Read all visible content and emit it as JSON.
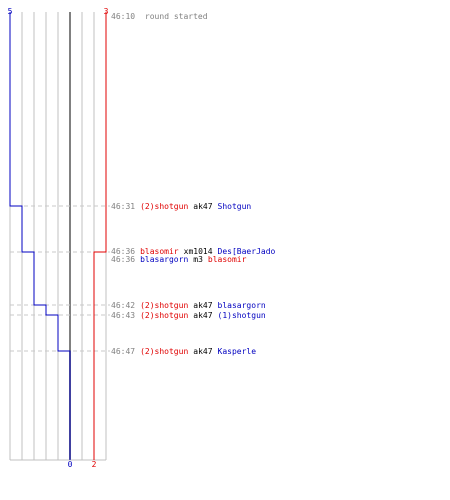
{
  "header": {
    "left_count": "5",
    "right_count": "3",
    "start_time": "46:10",
    "start_text": "round started"
  },
  "footer": {
    "left_value": "0",
    "right_value": "2"
  },
  "colors": {
    "team_blue": "#0000c0",
    "team_red": "#e00000",
    "grid": "#c0c0c0",
    "center_line": "#808080",
    "time_text": "#808080",
    "weapon_text": "#000000",
    "dashed": "#c8c8c8"
  },
  "events": [
    {
      "time": "46:31",
      "killer": "(2)shotgun",
      "killer_team": "red",
      "weapon": "ak47",
      "victim": "Shotgun",
      "victim_team": "blue"
    },
    {
      "time": "46:36",
      "killer": "blasomir",
      "killer_team": "red",
      "weapon": "xm1014",
      "victim": "Des[BaerJado",
      "victim_team": "blue"
    },
    {
      "time": "46:36",
      "killer": "blasargorn",
      "killer_team": "blue",
      "weapon": "m3",
      "victim": "blasomir",
      "victim_team": "red"
    },
    {
      "time": "46:42",
      "killer": "(2)shotgun",
      "killer_team": "red",
      "weapon": "ak47",
      "victim": "blasargorn",
      "victim_team": "blue"
    },
    {
      "time": "46:43",
      "killer": "(2)shotgun",
      "killer_team": "red",
      "weapon": "ak47",
      "victim": "(1)shotgun",
      "victim_team": "blue"
    },
    {
      "time": "46:47",
      "killer": "(2)shotgun",
      "killer_team": "red",
      "weapon": "ak47",
      "victim": "Kasperle",
      "victim_team": "blue"
    }
  ]
}
